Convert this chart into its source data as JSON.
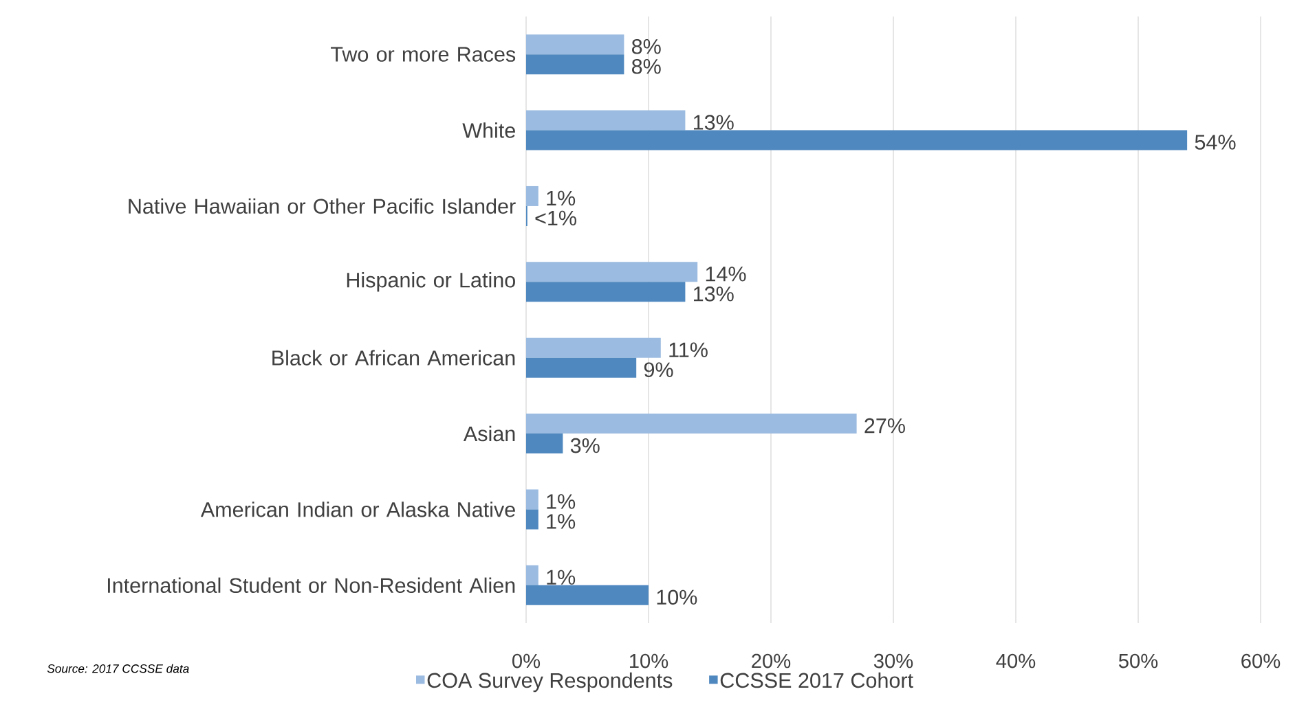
{
  "chart_data": {
    "type": "bar",
    "orientation": "horizontal",
    "categories": [
      "Two or more Races",
      "White",
      "Native Hawaiian or Other Pacific Islander",
      "Hispanic or Latino",
      "Black or African American",
      "Asian",
      "American Indian or Alaska Native",
      "International Student or Non-Resident Alien"
    ],
    "series": [
      {
        "name": "COA Survey Respondents",
        "color": "#9bbbe0",
        "values": [
          8,
          13,
          1,
          14,
          11,
          27,
          1,
          1
        ],
        "value_labels": [
          "8%",
          "13%",
          "1%",
          "14%",
          "11%",
          "27%",
          "1%",
          "1%"
        ]
      },
      {
        "name": "CCSSE 2017 Cohort",
        "color": "#4f88bf",
        "values": [
          8,
          54,
          0.1,
          13,
          9,
          3,
          1,
          10
        ],
        "value_labels": [
          "8%",
          "54%",
          "<1%",
          "13%",
          "9%",
          "3%",
          "1%",
          "10%"
        ]
      }
    ],
    "xlim": [
      0,
      60
    ],
    "xticks": [
      {
        "value": 0,
        "label": "0%"
      },
      {
        "value": 10,
        "label": "10%"
      },
      {
        "value": 20,
        "label": "20%"
      },
      {
        "value": 30,
        "label": "30%"
      },
      {
        "value": 40,
        "label": "40%"
      },
      {
        "value": 50,
        "label": "50%"
      },
      {
        "value": 60,
        "label": "60%"
      }
    ],
    "grid": "x",
    "legend": "bottom",
    "annotations": [
      "Source: 2017 CCSSE data"
    ]
  }
}
